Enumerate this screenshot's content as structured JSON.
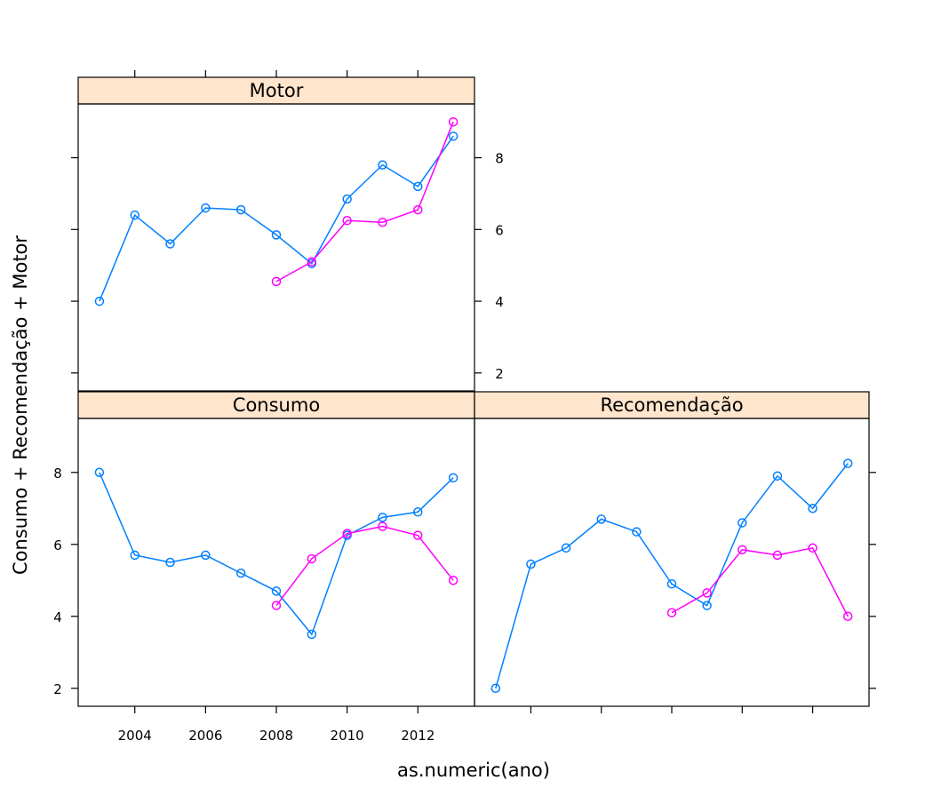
{
  "chart_data": {
    "type": "line",
    "title": "",
    "xlabel": "as.numeric(ano)",
    "ylabel": "Consumo + Recomendação + Motor",
    "xlim": [
      2002.4,
      2013.6
    ],
    "ylim": [
      1.5,
      9.5
    ],
    "x_ticks": [
      2004,
      2006,
      2008,
      2010,
      2012
    ],
    "y_ticks": [
      2,
      4,
      6,
      8
    ],
    "colors": {
      "series_1": "#0080ff",
      "series_2": "#ff00ff",
      "strip_bg": "#ffe5cc"
    },
    "panels": [
      {
        "name": "Consumo",
        "series": [
          {
            "color": "#0080ff",
            "points": [
              [
                2003,
                8.0
              ],
              [
                2004,
                5.7
              ],
              [
                2005,
                5.5
              ],
              [
                2006,
                5.7
              ],
              [
                2007,
                5.2
              ],
              [
                2008,
                4.7
              ],
              [
                2009,
                3.5
              ],
              [
                2010,
                6.25
              ],
              [
                2011,
                6.75
              ],
              [
                2012,
                6.9
              ],
              [
                2013,
                7.85
              ]
            ]
          },
          {
            "color": "#ff00ff",
            "points": [
              [
                2008,
                4.3
              ],
              [
                2009,
                5.6
              ],
              [
                2010,
                6.3
              ],
              [
                2011,
                6.5
              ],
              [
                2012,
                6.25
              ],
              [
                2013,
                5.0
              ]
            ]
          }
        ]
      },
      {
        "name": "Recomendação",
        "series": [
          {
            "color": "#0080ff",
            "points": [
              [
                2003,
                2.0
              ],
              [
                2004,
                5.45
              ],
              [
                2005,
                5.9
              ],
              [
                2006,
                6.7
              ],
              [
                2007,
                6.35
              ],
              [
                2008,
                4.9
              ],
              [
                2009,
                4.3
              ],
              [
                2010,
                6.6
              ],
              [
                2011,
                7.9
              ],
              [
                2012,
                7.0
              ],
              [
                2013,
                8.25
              ]
            ]
          },
          {
            "color": "#ff00ff",
            "points": [
              [
                2008,
                4.1
              ],
              [
                2009,
                4.65
              ],
              [
                2010,
                5.85
              ],
              [
                2011,
                5.7
              ],
              [
                2012,
                5.9
              ],
              [
                2013,
                4.0
              ]
            ]
          }
        ]
      },
      {
        "name": "Motor",
        "series": [
          {
            "color": "#0080ff",
            "points": [
              [
                2003,
                4.0
              ],
              [
                2004,
                6.4
              ],
              [
                2005,
                5.6
              ],
              [
                2006,
                6.6
              ],
              [
                2007,
                6.55
              ],
              [
                2008,
                5.85
              ],
              [
                2009,
                5.05
              ],
              [
                2010,
                6.85
              ],
              [
                2011,
                7.8
              ],
              [
                2012,
                7.2
              ],
              [
                2013,
                8.6
              ]
            ]
          },
          {
            "color": "#ff00ff",
            "points": [
              [
                2008,
                4.55
              ],
              [
                2009,
                5.1
              ],
              [
                2010,
                6.25
              ],
              [
                2011,
                6.2
              ],
              [
                2012,
                6.55
              ],
              [
                2013,
                9.0
              ]
            ]
          }
        ]
      }
    ]
  }
}
